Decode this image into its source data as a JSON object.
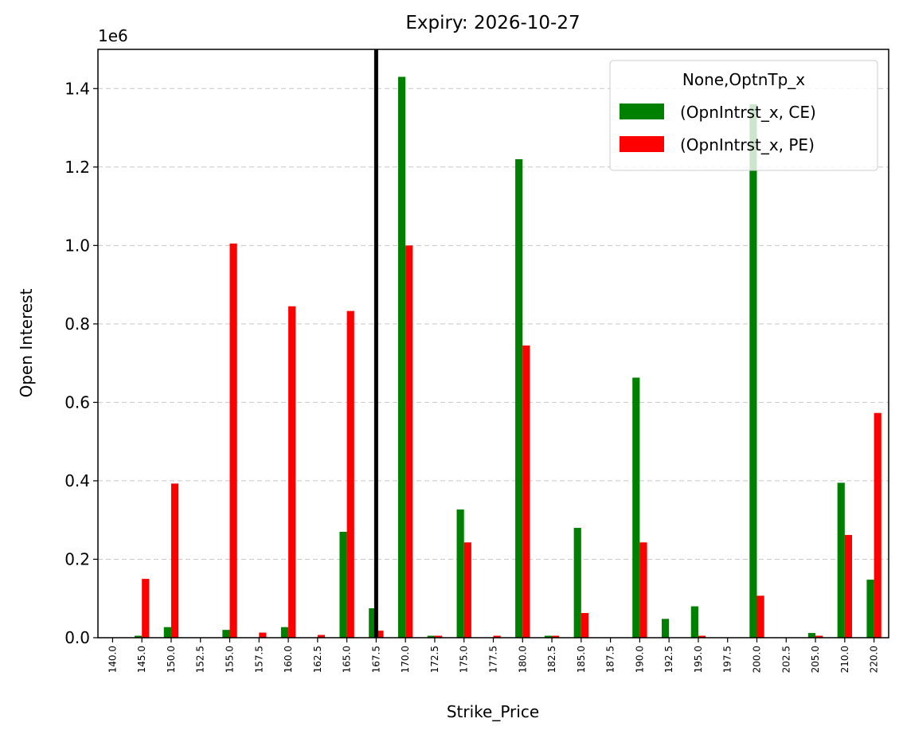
{
  "chart_data": {
    "type": "bar",
    "title": "Expiry: 2026-10-27",
    "x_label": "Strike_Price",
    "y_label": "Open Interest",
    "y_offset_label": "1e6",
    "categories": [
      "140.0",
      "145.0",
      "150.0",
      "152.5",
      "155.0",
      "157.5",
      "160.0",
      "162.5",
      "165.0",
      "167.5",
      "170.0",
      "172.5",
      "175.0",
      "177.5",
      "180.0",
      "182.5",
      "185.0",
      "187.5",
      "190.0",
      "192.5",
      "195.0",
      "197.5",
      "200.0",
      "202.5",
      "205.0",
      "210.0",
      "220.0"
    ],
    "series": [
      {
        "name": "(OpnIntrst_x, CE)",
        "color": "#008000",
        "values": [
          0,
          0.005,
          0.027,
          0,
          0.02,
          0,
          0.027,
          0,
          0.27,
          0.075,
          1.43,
          0.005,
          0.327,
          0,
          1.22,
          0.005,
          0.28,
          0,
          0.663,
          0.048,
          0.08,
          0,
          1.36,
          0,
          0.012,
          0.395,
          0.148
        ]
      },
      {
        "name": "(OpnIntrst_x, PE)",
        "color": "#ff0000",
        "values": [
          0,
          0.15,
          0.393,
          0,
          1.005,
          0.013,
          0.845,
          0.007,
          0.833,
          0.018,
          1.0,
          0.005,
          0.243,
          0.005,
          0.745,
          0.005,
          0.063,
          0,
          0.243,
          0,
          0.005,
          0,
          0.107,
          0,
          0.005,
          0.262,
          0.573
        ]
      }
    ],
    "ylim": [
      0,
      1.5
    ],
    "yticks": [
      {
        "value": 0,
        "label": "0.0"
      },
      0.2,
      0.4,
      0.6,
      0.8,
      {
        "value": 1,
        "label": "1.0"
      },
      1.2,
      1.4
    ],
    "grid": "y",
    "legend_title": "None,OptnTp_x",
    "legend_position": "upper-right",
    "vline": "167.5"
  }
}
